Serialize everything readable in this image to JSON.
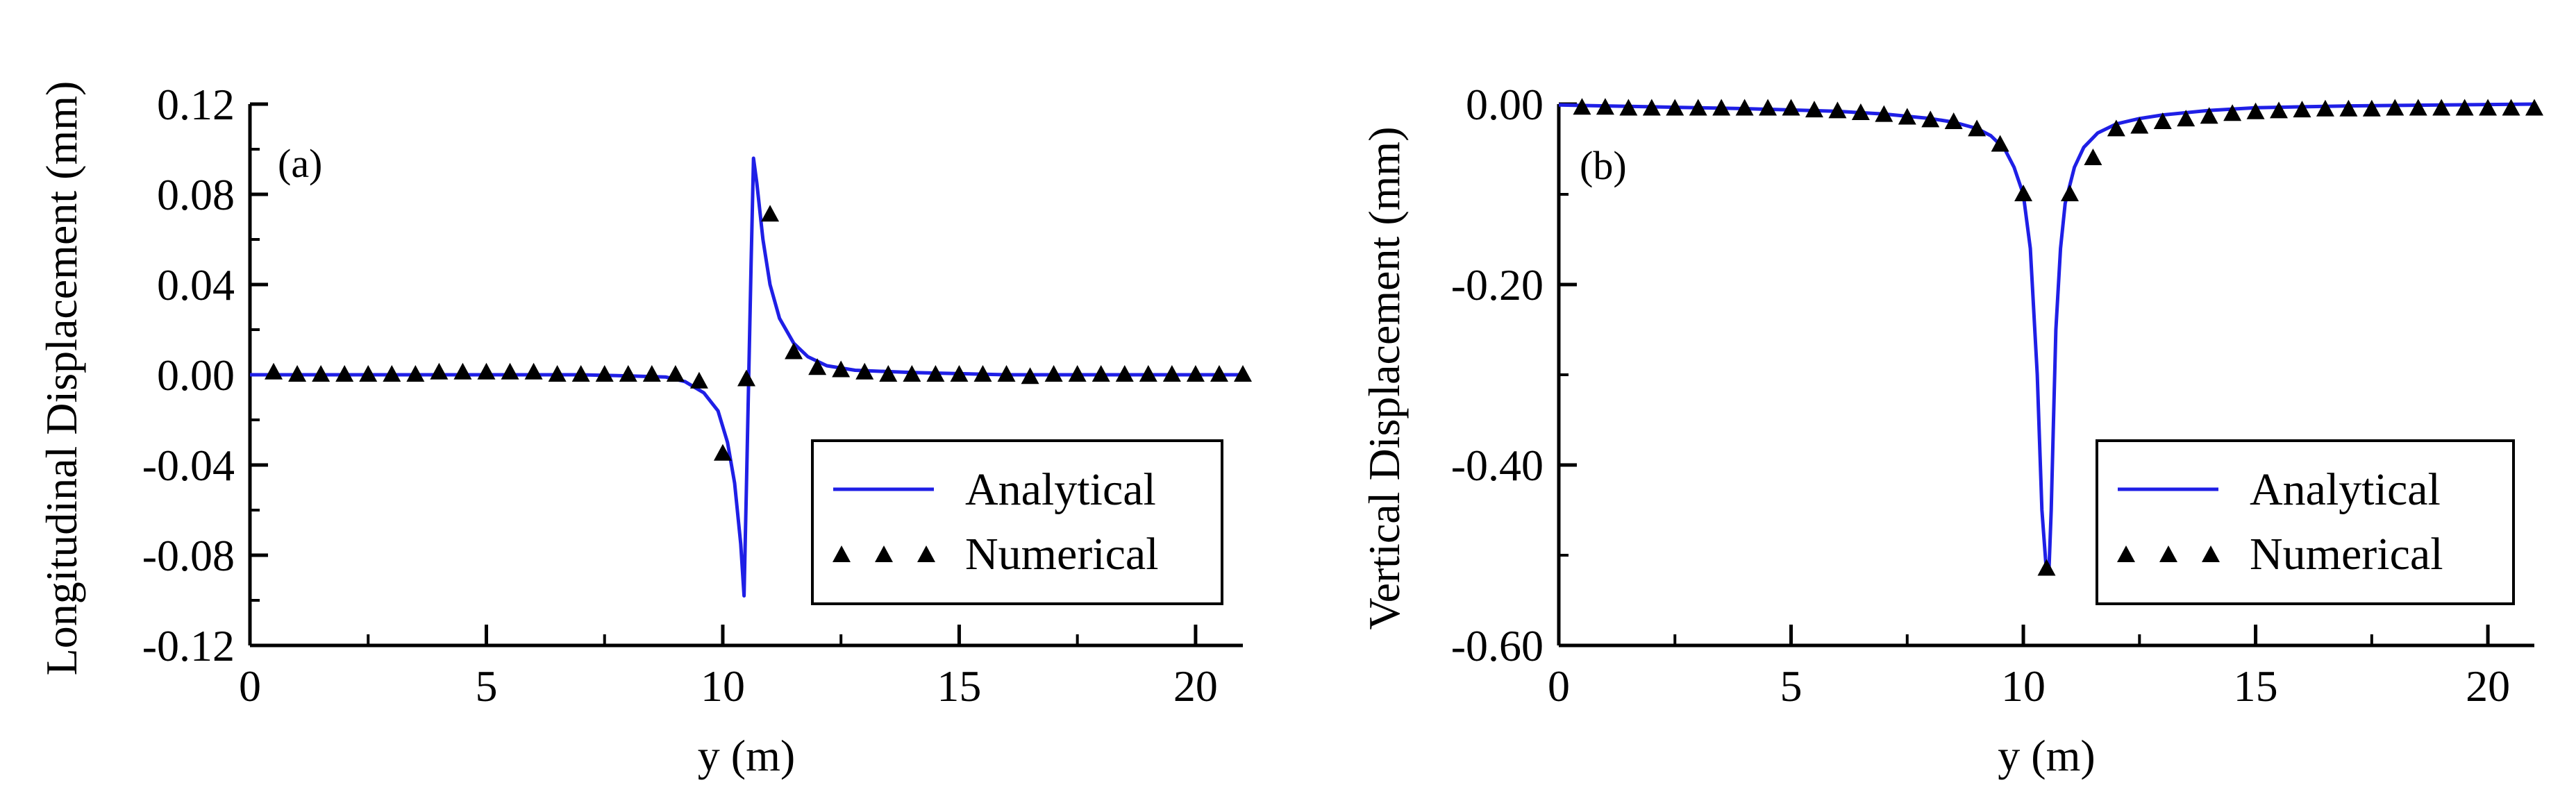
{
  "colors": {
    "analytical": "#1f1fe6",
    "numerical": "#000000",
    "axis": "#000000"
  },
  "chart_data": [
    {
      "type": "line",
      "panel_label": "(a)",
      "xlabel": "y (m)",
      "ylabel": "Longitudinal Displacement (mm)",
      "xlim": [
        0,
        21
      ],
      "ylim": [
        -0.12,
        0.12
      ],
      "x_ticks": [
        0,
        5,
        10,
        15,
        20
      ],
      "x_tick_labels": [
        "0",
        "5",
        "10",
        "15",
        "20"
      ],
      "y_ticks": [
        0.12,
        0.08,
        0.04,
        0.0,
        -0.04,
        -0.08,
        -0.12
      ],
      "y_tick_labels": [
        "0.12",
        "0.08",
        "0.04",
        "0.00",
        "-0.04",
        "-0.08",
        "-0.12"
      ],
      "legend": {
        "position": "lower-right",
        "entries": [
          "Analytical",
          "Numerical"
        ]
      },
      "series": [
        {
          "name": "Analytical",
          "style": "line",
          "x": [
            0,
            1,
            2,
            3,
            4,
            5,
            6,
            7,
            8,
            8.8,
            9.2,
            9.6,
            9.9,
            10.1,
            10.25,
            10.38,
            10.45,
            10.5,
            10.55,
            10.6,
            10.65,
            10.72,
            10.85,
            11.0,
            11.2,
            11.5,
            11.8,
            12.2,
            12.8,
            14,
            16,
            18,
            21
          ],
          "y": [
            0.0,
            0.0,
            0.0,
            0.0,
            0.0,
            0.0,
            0.0,
            0.0,
            -0.0005,
            -0.001,
            -0.003,
            -0.008,
            -0.016,
            -0.03,
            -0.048,
            -0.075,
            -0.098,
            -0.05,
            0.0,
            0.05,
            0.096,
            0.085,
            0.06,
            0.04,
            0.025,
            0.014,
            0.008,
            0.004,
            0.002,
            0.001,
            0.0,
            0.0,
            0.0
          ]
        },
        {
          "name": "Numerical",
          "style": "triangle",
          "x": [
            0.5,
            1.0,
            1.5,
            2.0,
            2.5,
            3.0,
            3.5,
            4.0,
            4.5,
            5.0,
            5.5,
            6.0,
            6.5,
            7.0,
            7.5,
            8.0,
            8.5,
            9.0,
            9.5,
            10.0,
            10.5,
            11.0,
            11.5,
            12.0,
            12.5,
            13.0,
            13.5,
            14.0,
            14.5,
            15.0,
            15.5,
            16.0,
            16.5,
            17.0,
            17.5,
            18.0,
            18.5,
            19.0,
            19.5,
            20.0,
            20.5,
            21.0
          ],
          "y": [
            0.001,
            0.0,
            0.0,
            0.0,
            0.0,
            0.0,
            0.0,
            0.001,
            0.001,
            0.001,
            0.001,
            0.001,
            0.0,
            0.0,
            0.0,
            0.0,
            0.0,
            0.0,
            -0.003,
            -0.035,
            -0.002,
            0.071,
            0.01,
            0.003,
            0.002,
            0.001,
            0.0,
            0.0,
            0.0,
            0.0,
            0.0,
            0.0,
            -0.001,
            0.0,
            0.0,
            0.0,
            0.0,
            0.0,
            0.0,
            0.0,
            0.0,
            0.0
          ]
        }
      ]
    },
    {
      "type": "line",
      "panel_label": "(b)",
      "xlabel": "y (m)",
      "ylabel": "Vertical Displacement (mm)",
      "xlim": [
        0,
        21
      ],
      "ylim": [
        -0.6,
        0.0
      ],
      "x_ticks": [
        0,
        5,
        10,
        15,
        20
      ],
      "x_tick_labels": [
        "0",
        "5",
        "10",
        "15",
        "20"
      ],
      "y_ticks": [
        0.0,
        -0.2,
        -0.4,
        -0.6
      ],
      "y_tick_labels": [
        "0.00",
        "-0.20",
        "-0.40",
        "-0.60"
      ],
      "legend": {
        "position": "lower-right",
        "entries": [
          "Analytical",
          "Numerical"
        ]
      },
      "series": [
        {
          "name": "Analytical",
          "style": "line",
          "x": [
            0,
            2,
            4,
            6,
            7,
            8,
            8.5,
            9.0,
            9.3,
            9.6,
            9.8,
            10.0,
            10.15,
            10.3,
            10.4,
            10.5,
            10.55,
            10.6,
            10.65,
            10.7,
            10.8,
            10.9,
            11.1,
            11.3,
            11.6,
            12.0,
            12.5,
            13,
            14,
            15,
            17,
            19,
            21
          ],
          "y": [
            -0.001,
            -0.003,
            -0.005,
            -0.008,
            -0.011,
            -0.016,
            -0.02,
            -0.027,
            -0.035,
            -0.05,
            -0.07,
            -0.1,
            -0.16,
            -0.3,
            -0.45,
            -0.52,
            -0.52,
            -0.45,
            -0.35,
            -0.25,
            -0.16,
            -0.11,
            -0.07,
            -0.048,
            -0.032,
            -0.022,
            -0.016,
            -0.012,
            -0.007,
            -0.004,
            -0.002,
            -0.001,
            0.0
          ]
        },
        {
          "name": "Numerical",
          "style": "triangle",
          "x": [
            0.5,
            1.0,
            1.5,
            2.0,
            2.5,
            3.0,
            3.5,
            4.0,
            4.5,
            5.0,
            5.5,
            6.0,
            6.5,
            7.0,
            7.5,
            8.0,
            8.5,
            9.0,
            9.5,
            10.0,
            10.5,
            11.0,
            11.5,
            12.0,
            12.5,
            13.0,
            13.5,
            14.0,
            14.5,
            15.0,
            15.5,
            16.0,
            16.5,
            17.0,
            17.5,
            18.0,
            18.5,
            19.0,
            19.5,
            20.0,
            20.5,
            21.0
          ],
          "y": [
            -0.004,
            -0.004,
            -0.005,
            -0.005,
            -0.005,
            -0.005,
            -0.005,
            -0.005,
            -0.005,
            -0.005,
            -0.007,
            -0.008,
            -0.01,
            -0.012,
            -0.015,
            -0.018,
            -0.02,
            -0.028,
            -0.045,
            -0.1,
            -0.515,
            -0.1,
            -0.06,
            -0.028,
            -0.025,
            -0.02,
            -0.017,
            -0.014,
            -0.011,
            -0.009,
            -0.008,
            -0.007,
            -0.006,
            -0.006,
            -0.006,
            -0.005,
            -0.005,
            -0.005,
            -0.005,
            -0.005,
            -0.005,
            -0.005
          ]
        }
      ]
    }
  ]
}
